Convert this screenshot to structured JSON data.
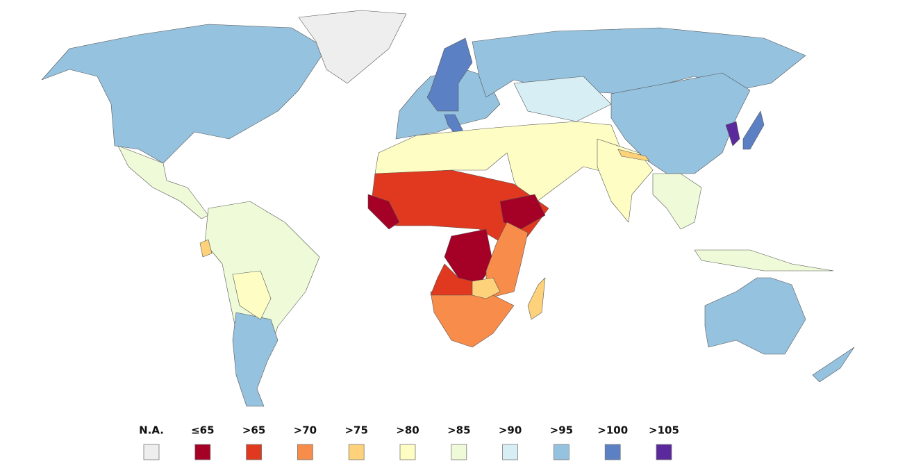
{
  "legend": {
    "items": [
      {
        "label": "N.A.",
        "color": "#eeeeee"
      },
      {
        "label": "≤65",
        "color": "#a50026"
      },
      {
        "label": ">65",
        "color": "#e0391f"
      },
      {
        "label": ">70",
        "color": "#f88c4a"
      },
      {
        "label": ">75",
        "color": "#fdd27a"
      },
      {
        "label": ">80",
        "color": "#fdfdc4"
      },
      {
        "label": ">85",
        "color": "#eefad8"
      },
      {
        "label": ">90",
        "color": "#d7eff4"
      },
      {
        "label": ">95",
        "color": "#95c2df"
      },
      {
        "label": ">100",
        "color": "#5b80c4"
      },
      {
        "label": ">105",
        "color": "#5a2a9c"
      }
    ]
  }
}
